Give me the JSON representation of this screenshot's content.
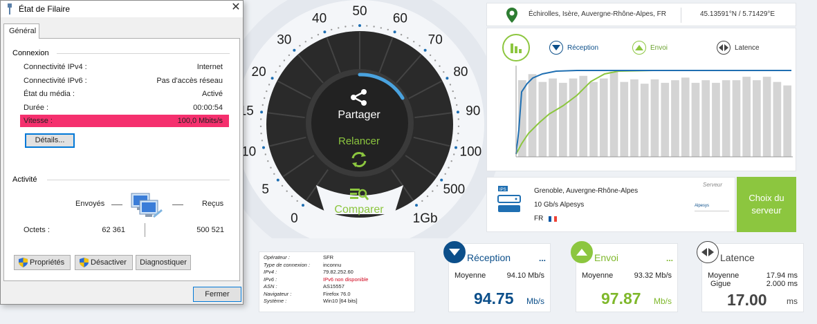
{
  "dialog": {
    "title": "État de Filaire",
    "tab": "Général",
    "connexion": {
      "title": "Connexion",
      "rows": [
        {
          "label": "Connectivité IPv4 :",
          "value": "Internet"
        },
        {
          "label": "Connectivité IPv6 :",
          "value": "Pas d'accès réseau"
        },
        {
          "label": "État du média :",
          "value": "Activé"
        },
        {
          "label": "Durée :",
          "value": "00:00:54"
        },
        {
          "label": "Vitesse :",
          "value": "100,0 Mbits/s"
        }
      ],
      "details_button": "Détails..."
    },
    "activite": {
      "title": "Activité",
      "sent_label": "Envoyés",
      "received_label": "Reçus",
      "octets_label": "Octets :",
      "sent_value": "62 361",
      "received_value": "500 521"
    },
    "buttons": {
      "properties": "Propriétés",
      "disable": "Désactiver",
      "diagnose": "Diagnostiquer",
      "close": "Fermer"
    }
  },
  "gauge": {
    "ticks": [
      "0",
      "5",
      "10",
      "15",
      "20",
      "30",
      "40",
      "50",
      "60",
      "70",
      "80",
      "90",
      "100",
      "500",
      "1Gb"
    ],
    "share_label": "Partager",
    "restart_label": "Relancer",
    "compare_label": "Comparer"
  },
  "location": {
    "city": "Échirolles, Isère, Auvergne-Rhône-Alpes, FR",
    "coords": "45.13591°N / 5.71429°E"
  },
  "graph": {
    "legend": {
      "reception": "Réception",
      "envoi": "Envoi",
      "latence": "Latence"
    },
    "colors": {
      "reception": "#1f6fb2",
      "envoi": "#8cc63f",
      "bars": "#d4d4d4"
    }
  },
  "server": {
    "label": "Serveur",
    "city": "Grenoble, Auvergne-Rhône-Alpes",
    "isp": "10 Gb/s Alpesys",
    "country": "FR",
    "ips_badge": "IPS",
    "logo_text": "Alpesys",
    "choose_button": "Choix du serveur"
  },
  "info": {
    "rows": [
      {
        "label": "Opérateur :",
        "value": "SFR"
      },
      {
        "label": "Type de connexion :",
        "value": "inconnu"
      },
      {
        "label": "IPv4 :",
        "value": "79.82.252.60"
      },
      {
        "label": "IPv6 :",
        "value": "IPv6 non disponible"
      },
      {
        "label": "ASN :",
        "value": "AS15557"
      },
      {
        "label": "Navigateur :",
        "value": "Firefox 76.0"
      },
      {
        "label": "Système :",
        "value": "Win10 [64 bits]"
      }
    ]
  },
  "results": {
    "reception": {
      "title": "Réception",
      "avg_label": "Moyenne",
      "avg_value": "94.10 Mb/s",
      "value": "94.75",
      "unit": "Mb/s"
    },
    "envoi": {
      "title": "Envoi",
      "avg_label": "Moyenne",
      "avg_value": "93.32 Mb/s",
      "value": "97.87",
      "unit": "Mb/s"
    },
    "latence": {
      "title": "Latence",
      "avg_label": "Moyenne",
      "avg_value": "17.94 ms",
      "jitter_label": "Gigue",
      "jitter_value": "2.000 ms",
      "value": "17.00",
      "unit": "ms"
    },
    "more": "..."
  }
}
